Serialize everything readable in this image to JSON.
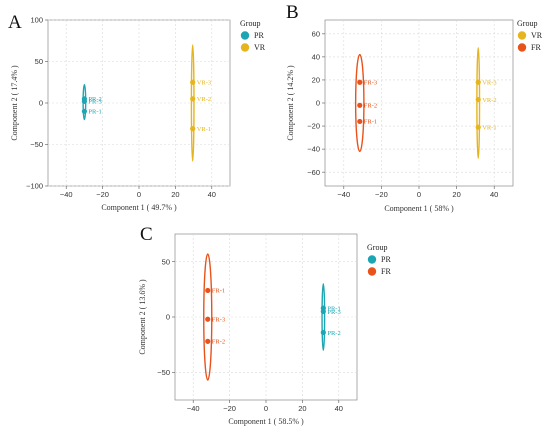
{
  "colors": {
    "PR": "#1ca6b3",
    "VR": "#e6b41e",
    "FR": "#e8521b"
  },
  "chart_data": [
    {
      "type": "scatter",
      "panel": "A",
      "xlabel": "Component 1 ( 49.7% )",
      "ylabel": "Component 2 ( 17.4% )",
      "xlim": [
        -50,
        50
      ],
      "ylim": [
        -100,
        100
      ],
      "xticks": [
        -40,
        -20,
        0,
        20,
        40
      ],
      "xtick_labels": [
        "−40",
        "−20",
        "0",
        "20",
        "40"
      ],
      "yticks": [
        -100,
        -50,
        0,
        50,
        100
      ],
      "ytick_labels": [
        "−100",
        "−50",
        "0",
        "50",
        "100"
      ],
      "grid": true,
      "legend": {
        "title": "Group",
        "position": "right",
        "entries": [
          "PR",
          "VR"
        ]
      },
      "series": [
        {
          "name": "PR",
          "color": "#1ca6b3",
          "ellipse": {
            "cx": -30,
            "cy": 1,
            "rx": 0.7,
            "ry": 21
          },
          "points": [
            {
              "label": "PR-2",
              "x": -30,
              "y": 5
            },
            {
              "label": "PR-3",
              "x": -30,
              "y": 2
            },
            {
              "label": "PR-1",
              "x": -30,
              "y": -10
            }
          ]
        },
        {
          "name": "VR",
          "color": "#e6b41e",
          "ellipse": {
            "cx": 29.5,
            "cy": 0,
            "rx": 0.7,
            "ry": 70
          },
          "points": [
            {
              "label": "VR-3",
              "x": 29.5,
              "y": 25
            },
            {
              "label": "VR-2",
              "x": 29.5,
              "y": 5
            },
            {
              "label": "VR-1",
              "x": 29.5,
              "y": -31
            }
          ]
        }
      ]
    },
    {
      "type": "scatter",
      "panel": "B",
      "xlabel": "Component 1 ( 58% )",
      "ylabel": "Component 2 ( 14.2% )",
      "xlim": [
        -50,
        50
      ],
      "ylim": [
        -72,
        72
      ],
      "xticks": [
        -40,
        -20,
        0,
        20,
        40
      ],
      "xtick_labels": [
        "−40",
        "−20",
        "0",
        "20",
        "40"
      ],
      "yticks": [
        -60,
        -40,
        -20,
        0,
        20,
        40,
        60
      ],
      "ytick_labels": [
        "−60",
        "−40",
        "−20",
        "0",
        "20",
        "40",
        "60"
      ],
      "grid": true,
      "legend": {
        "title": "Group",
        "position": "right",
        "entries": [
          "VR",
          "FR"
        ]
      },
      "series": [
        {
          "name": "FR",
          "color": "#e8521b",
          "ellipse": {
            "cx": -31.5,
            "cy": 0,
            "rx": 2.2,
            "ry": 42
          },
          "points": [
            {
              "label": "FR-3",
              "x": -31.5,
              "y": 18
            },
            {
              "label": "FR-2",
              "x": -31.5,
              "y": -2
            },
            {
              "label": "FR-1",
              "x": -31.5,
              "y": -16
            }
          ]
        },
        {
          "name": "VR",
          "color": "#e6b41e",
          "ellipse": {
            "cx": 31.5,
            "cy": 0,
            "rx": 0.7,
            "ry": 48
          },
          "points": [
            {
              "label": "VR-3",
              "x": 31.5,
              "y": 18
            },
            {
              "label": "VR-2",
              "x": 31.5,
              "y": 3
            },
            {
              "label": "VR-1",
              "x": 31.5,
              "y": -21
            }
          ]
        }
      ]
    },
    {
      "type": "scatter",
      "panel": "C",
      "xlabel": "Component 1 ( 58.5% )",
      "ylabel": "Component 2 ( 13.6% )",
      "xlim": [
        -50,
        50
      ],
      "ylim": [
        -75,
        75
      ],
      "xticks": [
        -40,
        -20,
        0,
        20,
        40
      ],
      "xtick_labels": [
        "−40",
        "−20",
        "0",
        "20",
        "40"
      ],
      "yticks": [
        -50,
        0,
        50
      ],
      "ytick_labels": [
        "−50",
        "0",
        "50"
      ],
      "grid": true,
      "legend": {
        "title": "Group",
        "position": "right",
        "entries": [
          "PR",
          "FR"
        ]
      },
      "series": [
        {
          "name": "FR",
          "color": "#e8521b",
          "ellipse": {
            "cx": -32,
            "cy": 0,
            "rx": 2.2,
            "ry": 57
          },
          "points": [
            {
              "label": "FR-1",
              "x": -32,
              "y": 24
            },
            {
              "label": "FR-3",
              "x": -32,
              "y": -2
            },
            {
              "label": "FR-2",
              "x": -32,
              "y": -22
            }
          ]
        },
        {
          "name": "PR",
          "color": "#1ca6b3",
          "ellipse": {
            "cx": 31.5,
            "cy": 0,
            "rx": 0.7,
            "ry": 30
          },
          "points": [
            {
              "label": "PR-1",
              "x": 31.5,
              "y": 8
            },
            {
              "label": "PR-3",
              "x": 31.5,
              "y": 5
            },
            {
              "label": "PR-2",
              "x": 31.5,
              "y": -14
            }
          ]
        }
      ]
    }
  ]
}
